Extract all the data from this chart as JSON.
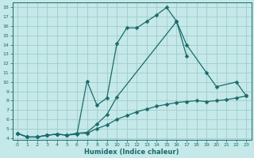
{
  "xlabel": "Humidex (Indice chaleur)",
  "background_color": "#c5e8e8",
  "grid_color": "#a0cccc",
  "line_color": "#1a6b6b",
  "xlim": [
    -0.5,
    23.5
  ],
  "ylim": [
    3.8,
    18.5
  ],
  "xticks": [
    0,
    1,
    2,
    3,
    4,
    5,
    6,
    7,
    8,
    9,
    10,
    11,
    12,
    13,
    14,
    15,
    16,
    17,
    18,
    19,
    20,
    21,
    22,
    23
  ],
  "yticks": [
    4,
    5,
    6,
    7,
    8,
    9,
    10,
    11,
    12,
    13,
    14,
    15,
    16,
    17,
    18
  ],
  "line1_x": [
    0,
    1,
    2,
    3,
    4,
    5,
    6,
    7,
    8,
    9,
    10,
    11,
    12,
    13,
    14,
    15,
    16,
    17
  ],
  "line1_y": [
    4.5,
    4.1,
    4.1,
    4.3,
    4.4,
    4.3,
    4.4,
    10.1,
    7.5,
    8.3,
    14.1,
    15.8,
    15.8,
    16.5,
    17.2,
    18.0,
    16.5,
    12.8
  ],
  "line2_x": [
    0,
    1,
    2,
    3,
    4,
    5,
    6,
    7,
    8,
    9,
    10,
    16,
    17,
    19,
    20,
    22,
    23
  ],
  "line2_y": [
    4.5,
    4.1,
    4.1,
    4.3,
    4.4,
    4.3,
    4.5,
    4.6,
    5.5,
    6.5,
    8.4,
    16.5,
    14.0,
    11.0,
    9.5,
    10.0,
    8.5
  ],
  "line3_x": [
    0,
    1,
    2,
    3,
    4,
    5,
    6,
    7,
    8,
    9,
    10,
    11,
    12,
    13,
    14,
    15,
    16,
    17,
    18,
    19,
    20,
    21,
    22,
    23
  ],
  "line3_y": [
    4.5,
    4.1,
    4.1,
    4.3,
    4.4,
    4.3,
    4.5,
    4.5,
    5.0,
    5.4,
    6.0,
    6.4,
    6.8,
    7.1,
    7.4,
    7.6,
    7.8,
    7.9,
    8.0,
    7.9,
    8.0,
    8.1,
    8.3,
    8.5
  ]
}
